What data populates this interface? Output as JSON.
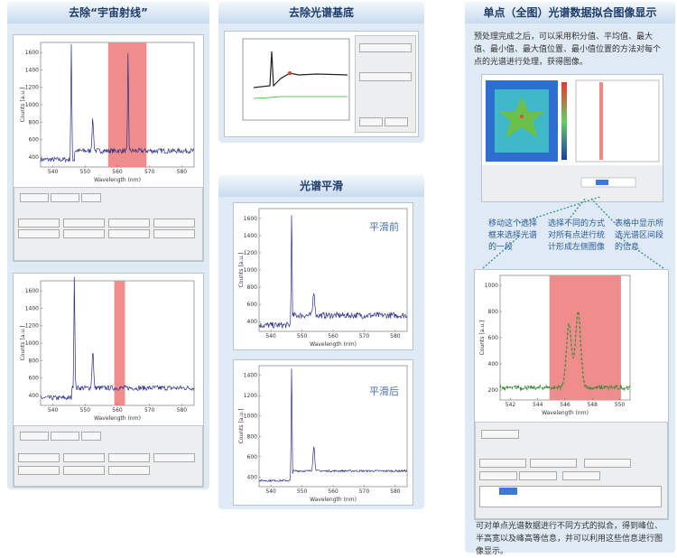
{
  "panels": {
    "cosmic": {
      "title": "去除“宇宙射线”"
    },
    "baseline": {
      "title": "去除光谱基底"
    },
    "smooth": {
      "title": "光谱平滑",
      "before": "平滑前",
      "after": "平滑后"
    },
    "mapping": {
      "title": "单点（全图）光谱数据拟合图像显示",
      "intro": "预处理完成之后，可以采用积分值、平均值、最大值、最小值、最大值位置、最小值位置的方法对每个点的光谱进行处理，获得图像。",
      "callouts": [
        "移动这个选择框来选择光谱的一段",
        "选择不同的方式对所有点进行统计形成左侧图像",
        "表格中显示所选光谱区间段的信息"
      ],
      "footer": "可对单点光谱数据进行不同方式的拟合，得到峰位、半高宽以及峰高等信息，并可以利用这些信息进行图像显示。"
    }
  },
  "plots": {
    "cosmic_top": {
      "xlabel": "Wavelength (nm)",
      "ylabel": "Counts [a.u.]",
      "xticks": [
        540,
        550,
        560,
        570,
        580
      ],
      "yticks": [
        400,
        600,
        800,
        1000,
        1200,
        1400,
        1600
      ]
    },
    "cosmic_bottom": {
      "xlabel": "Wavelength (nm)",
      "ylabel": "Counts [a.u.]",
      "xticks": [
        540,
        550,
        560,
        570,
        580
      ],
      "yticks": [
        400,
        600,
        800,
        1000,
        1200,
        1400,
        1600
      ]
    },
    "smooth_before": {
      "xlabel": "Wavelength (nm)",
      "ylabel": "Counts [a.u.]",
      "xticks": [
        540,
        550,
        560,
        570,
        580
      ],
      "yticks": [
        400,
        600,
        800,
        1000,
        1200,
        1400,
        1600
      ]
    },
    "smooth_after": {
      "xlabel": "Wavelength (nm)",
      "ylabel": "Counts [a.u.]",
      "xticks": [
        540,
        550,
        560,
        570,
        580
      ],
      "yticks": [
        400,
        600,
        800,
        1000,
        1200,
        1400
      ]
    },
    "mapping_zoom": {
      "xlabel": "Wavelength (nm)",
      "ylabel": "Counts [a.u.]",
      "xticks": [
        542,
        544,
        546,
        548,
        550
      ],
      "yticks": [
        200,
        400,
        600,
        800,
        1000
      ]
    }
  }
}
